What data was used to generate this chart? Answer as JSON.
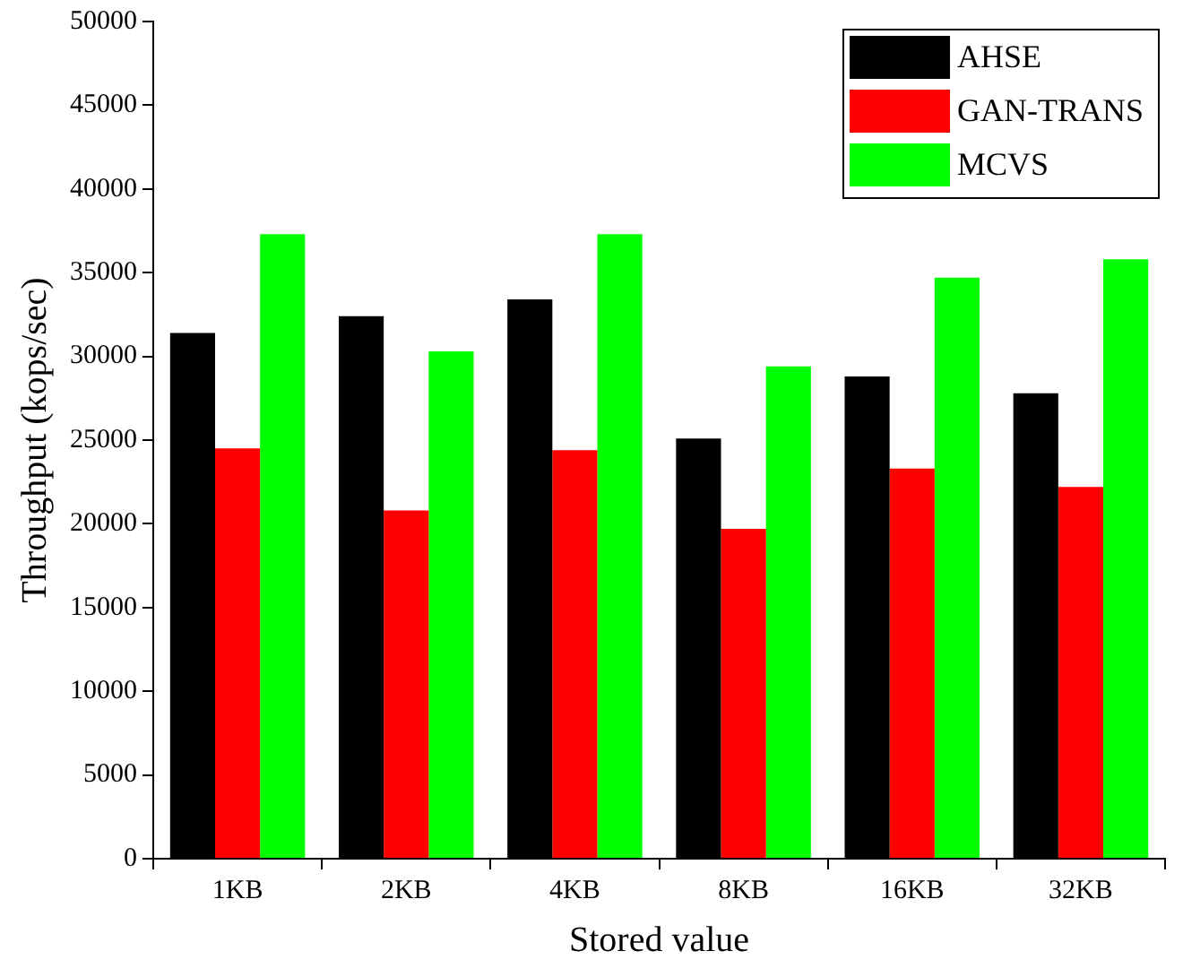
{
  "chart_data": {
    "type": "bar",
    "xlabel": "Stored value",
    "ylabel": "Throughput (kops/sec)",
    "categories": [
      "1KB",
      "2KB",
      "4KB",
      "8KB",
      "16KB",
      "32KB"
    ],
    "series": [
      {
        "name": "AHSE",
        "color": "#000000",
        "values": [
          31400,
          32400,
          33400,
          25100,
          28800,
          27800
        ]
      },
      {
        "name": "GAN-TRANS",
        "color": "#ff0000",
        "values": [
          24500,
          20800,
          24400,
          19700,
          23300,
          22200
        ]
      },
      {
        "name": "MCVS",
        "color": "#00ff00",
        "values": [
          37300,
          30300,
          37300,
          29400,
          34700,
          35800
        ]
      }
    ],
    "ylim": [
      0,
      50000
    ],
    "yticks": [
      0,
      5000,
      10000,
      15000,
      20000,
      25000,
      30000,
      35000,
      40000,
      45000,
      50000
    ],
    "grid": false,
    "legend": "top right"
  }
}
